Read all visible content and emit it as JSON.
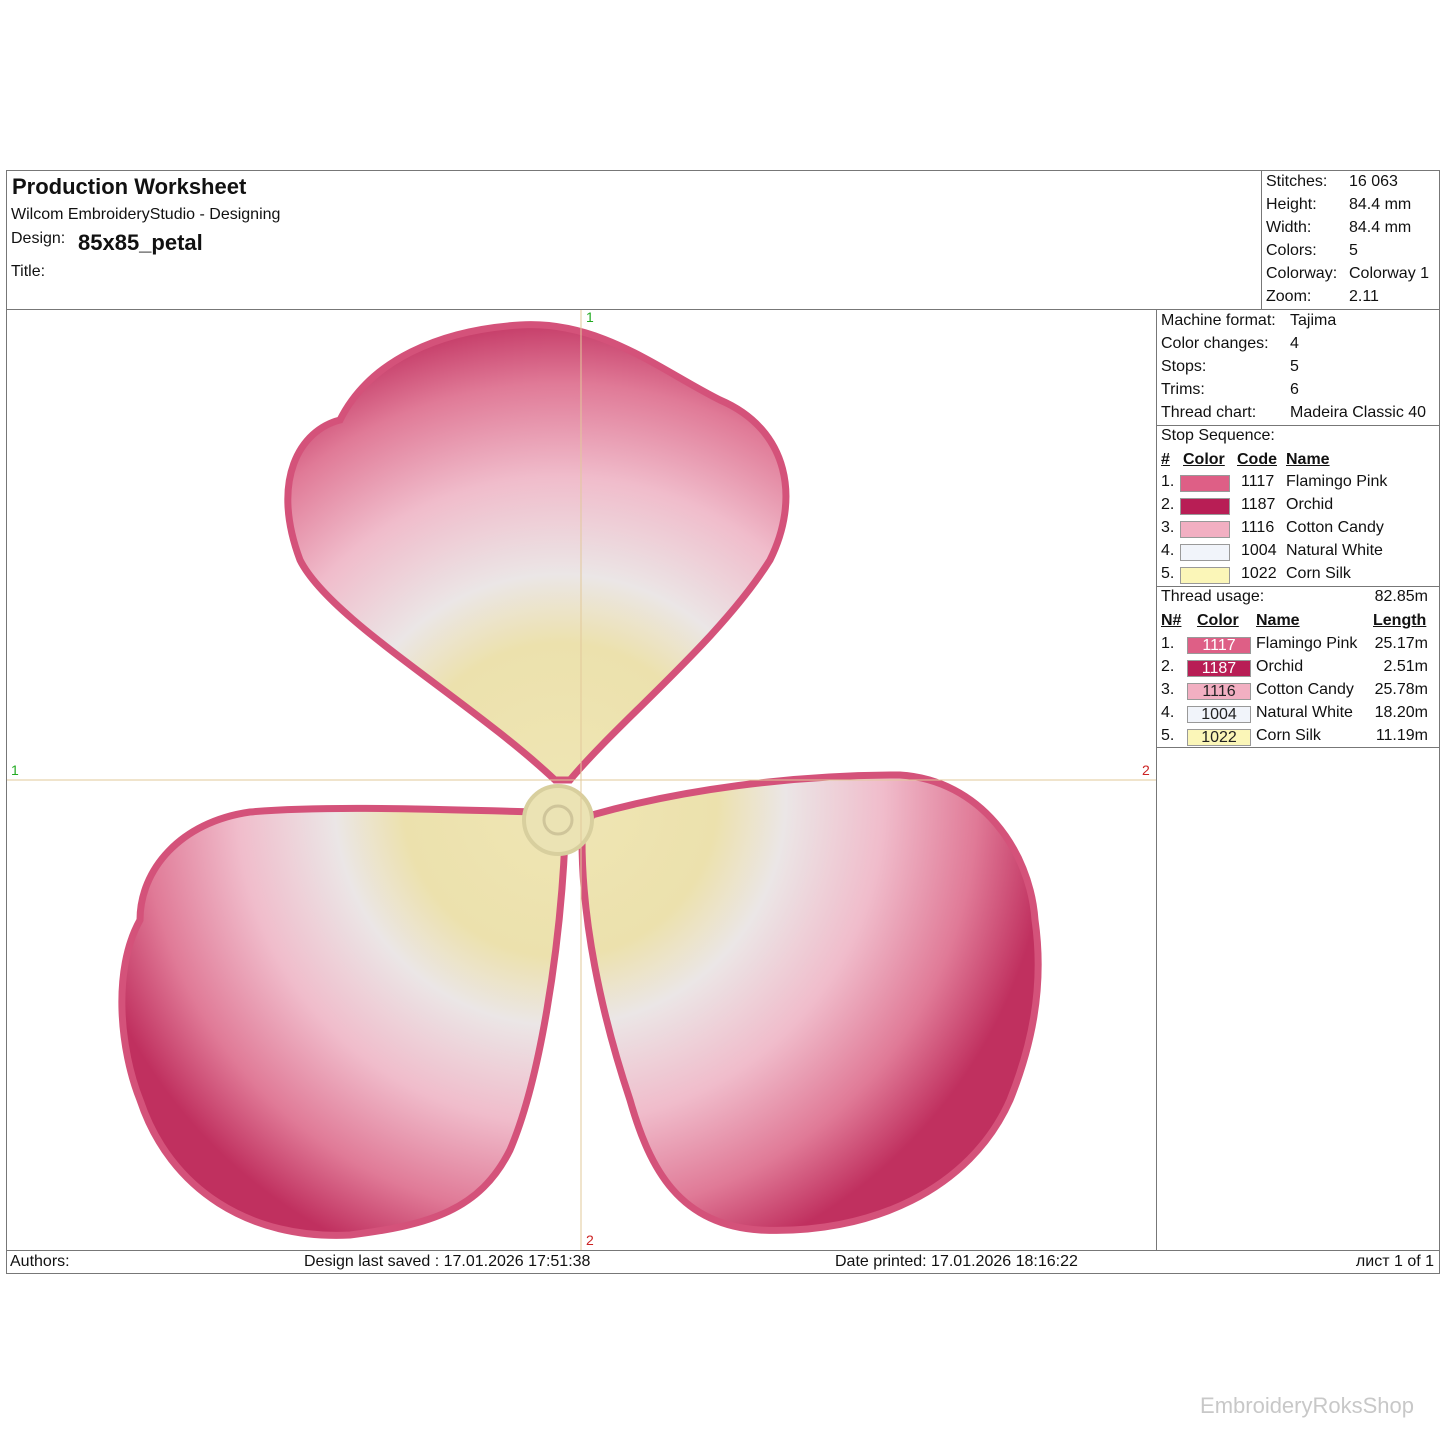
{
  "header": {
    "title": "Production Worksheet",
    "software": "Wilcom EmbroideryStudio - Designing",
    "design_label": "Design:",
    "design": "85x85_petal",
    "title_label": "Title:"
  },
  "summary": [
    {
      "label": "Stitches:",
      "value": "16 063"
    },
    {
      "label": "Height:",
      "value": "84.4 mm"
    },
    {
      "label": "Width:",
      "value": "84.4 mm"
    },
    {
      "label": "Colors:",
      "value": "5"
    },
    {
      "label": "Colorway:",
      "value": "Colorway 1"
    },
    {
      "label": "Zoom:",
      "value": "2.11"
    }
  ],
  "machine": [
    {
      "label": "Machine format:",
      "value": "Tajima"
    },
    {
      "label": "Color changes:",
      "value": "4"
    },
    {
      "label": "Stops:",
      "value": "5"
    },
    {
      "label": "Trims:",
      "value": "6"
    },
    {
      "label": "Thread chart:",
      "value": "Madeira Classic 40"
    }
  ],
  "stop_sequence": {
    "title": "Stop Sequence:",
    "columns": [
      "#",
      "Color",
      "Code",
      "Name"
    ],
    "rows": [
      {
        "num": "1.",
        "color": "#de5f86",
        "code": "1117",
        "name": "Flamingo Pink"
      },
      {
        "num": "2.",
        "color": "#b81e55",
        "code": "1187",
        "name": "Orchid"
      },
      {
        "num": "3.",
        "color": "#f2afc2",
        "code": "1116",
        "name": "Cotton Candy"
      },
      {
        "num": "4.",
        "color": "#f1f4fa",
        "code": "1004",
        "name": "Natural White"
      },
      {
        "num": "5.",
        "color": "#fbf6b8",
        "code": "1022",
        "name": "Corn Silk"
      }
    ]
  },
  "thread_usage": {
    "title": "Thread usage:",
    "total": "82.85m",
    "columns": [
      "N#",
      "Color",
      "Name",
      "Length"
    ],
    "rows": [
      {
        "num": "1.",
        "color": "#de5f86",
        "code": "1117",
        "name": "Flamingo Pink",
        "length": "25.17m"
      },
      {
        "num": "2.",
        "color": "#b81e55",
        "code": "1187",
        "name": "Orchid",
        "length": "2.51m"
      },
      {
        "num": "3.",
        "color": "#f2afc2",
        "code": "1116",
        "name": "Cotton Candy",
        "length": "25.78m"
      },
      {
        "num": "4.",
        "color": "#f1f4fa",
        "code": "1004",
        "name": "Natural White",
        "length": "18.20m"
      },
      {
        "num": "5.",
        "color": "#fbf6b8",
        "code": "1022",
        "name": "Corn Silk",
        "length": "11.19m"
      }
    ]
  },
  "guides": {
    "top": "1",
    "left": "1",
    "right": "2",
    "bottom": "2"
  },
  "footer": {
    "authors": "Authors:",
    "saved": "Design last saved : 17.01.2026 17:51:38",
    "printed": "Date printed: 17.01.2026 18:16:22",
    "sheet": "лист 1 of 1"
  },
  "watermark": "EmbroideryRoksShop"
}
